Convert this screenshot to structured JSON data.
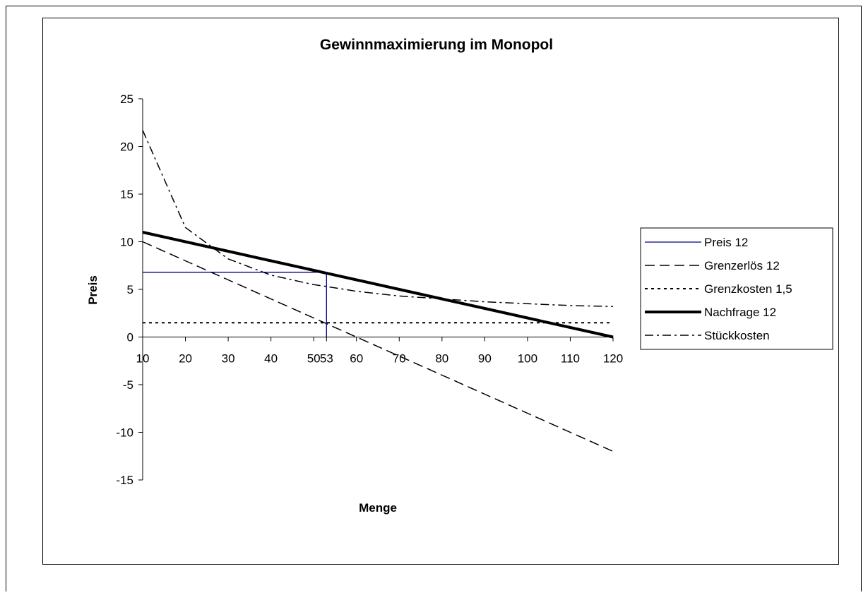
{
  "chart_data": {
    "type": "line",
    "title": "Gewinnmaximierung im Monopol",
    "xlabel": "Menge",
    "ylabel": "Preis",
    "x_categories": [
      "10",
      "20",
      "30",
      "40",
      "50",
      "53",
      "60",
      "70",
      "80",
      "90",
      "100",
      "110",
      "120"
    ],
    "x_values": [
      10,
      20,
      30,
      40,
      50,
      53,
      60,
      70,
      80,
      90,
      100,
      110,
      120
    ],
    "ylim": [
      -15,
      25
    ],
    "yticks": [
      25,
      20,
      15,
      10,
      5,
      0,
      -5,
      -10,
      -15
    ],
    "grid": false,
    "legend_position": "right",
    "series": [
      {
        "name": "Preis 12",
        "color": "#000080",
        "style": "solid",
        "description": "price level at profit-maximizing quantity",
        "points": [
          [
            10,
            6.8
          ],
          [
            53,
            6.8
          ],
          [
            53,
            0
          ]
        ]
      },
      {
        "name": "Grenzerlös 12",
        "color": "#000000",
        "style": "dash",
        "values": [
          10,
          8,
          6,
          4,
          2,
          1.4,
          0,
          -2,
          -4,
          -6,
          -8,
          -10,
          -12
        ]
      },
      {
        "name": "Grenzkosten 1,5",
        "color": "#000000",
        "style": "dot",
        "values": [
          1.5,
          1.5,
          1.5,
          1.5,
          1.5,
          1.5,
          1.5,
          1.5,
          1.5,
          1.5,
          1.5,
          1.5,
          1.5
        ]
      },
      {
        "name": "Nachfrage 12",
        "color": "#000000",
        "style": "thick",
        "values": [
          11,
          10,
          9,
          8,
          7,
          6.7,
          6,
          5,
          4,
          3,
          2,
          1,
          0
        ]
      },
      {
        "name": "Stückkosten",
        "color": "#000000",
        "style": "dashdot",
        "values": [
          21.7,
          11.5,
          8.2,
          6.5,
          5.5,
          5.3,
          4.8,
          4.3,
          4.0,
          3.7,
          3.5,
          3.3,
          3.2
        ]
      }
    ]
  }
}
